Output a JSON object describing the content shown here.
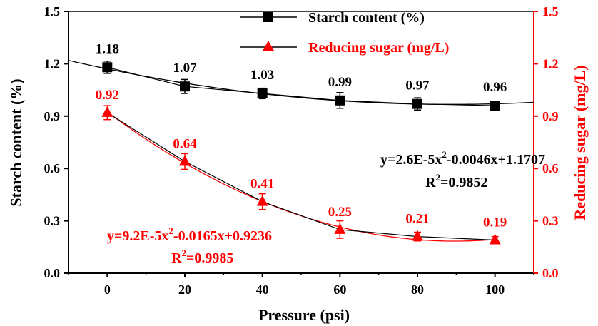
{
  "chart_data": {
    "type": "line",
    "title": "",
    "xlabel": "Pressure (psi)",
    "ylabel_left": "Starch content (%)",
    "ylabel_right": "Reducing sugar (mg/L)",
    "xlim": [
      -10,
      110
    ],
    "ylim_left": [
      0,
      1.5
    ],
    "ylim_right": [
      0,
      1.5
    ],
    "x_ticks": [
      "0",
      "20",
      "40",
      "60",
      "80",
      "100"
    ],
    "y_ticks_left": [
      "0.0",
      "0.3",
      "0.6",
      "0.9",
      "1.2",
      "1.5"
    ],
    "y_ticks_right": [
      "0.0",
      "0.3",
      "0.6",
      "0.9",
      "1.2",
      "1.5"
    ],
    "grid": false,
    "legend_position": "top-center",
    "colors": {
      "starch": "#000000",
      "sugar": "#ff0000"
    },
    "x": [
      0,
      20,
      40,
      60,
      80,
      100
    ],
    "series": [
      {
        "name": "Starch content (%)",
        "axis": "left",
        "marker": "square",
        "values": [
          1.18,
          1.07,
          1.03,
          0.99,
          0.97,
          0.96
        ],
        "errors": [
          0.035,
          0.04,
          0.03,
          0.045,
          0.035,
          0.025
        ],
        "labels": [
          "1.18",
          "1.07",
          "1.03",
          "0.99",
          "0.97",
          "0.96"
        ],
        "fit": {
          "a": 2.6e-05,
          "b": -0.0046,
          "c": 1.1707
        },
        "equation_parts": [
          "y=2.6E-5x",
          "2",
          "-0.0046x+1.1707"
        ],
        "r2_parts": [
          "R",
          "2",
          "=0.9852"
        ]
      },
      {
        "name": "Reducing sugar (mg/L)",
        "axis": "right",
        "marker": "triangle",
        "values": [
          0.92,
          0.64,
          0.41,
          0.25,
          0.21,
          0.19
        ],
        "errors": [
          0.04,
          0.045,
          0.045,
          0.05,
          0.025,
          0.02
        ],
        "labels": [
          "0.92",
          "0.64",
          "0.41",
          "0.25",
          "0.21",
          "0.19"
        ],
        "fit": {
          "a": 9.2e-05,
          "b": -0.0165,
          "c": 0.9236
        },
        "equation_parts": [
          "y=9.2E-5x",
          "2",
          "-0.0165x+0.9236"
        ],
        "r2_parts": [
          "R",
          "2",
          "=0.9985"
        ]
      }
    ]
  }
}
